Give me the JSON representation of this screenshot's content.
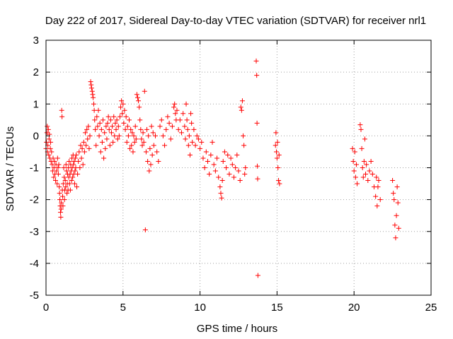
{
  "chart_data": {
    "type": "scatter",
    "title": "Day 222 of 2017, Sidereal Day-to-day VTEC variation (SDTVAR) for receiver nrl1",
    "xlabel": "GPS time / hours",
    "ylabel": "SDTVAR / TECUs",
    "xlim": [
      0,
      25
    ],
    "ylim": [
      -5,
      3
    ],
    "xticks": [
      0,
      5,
      10,
      15,
      20,
      25
    ],
    "yticks": [
      -5,
      -4,
      -3,
      -2,
      -1,
      0,
      1,
      2,
      3
    ],
    "grid": true,
    "marker": "+",
    "color": "#ff0000",
    "series": [
      {
        "name": "SDTVAR",
        "points": [
          [
            0.0,
            -0.4
          ],
          [
            0.03,
            -0.2
          ],
          [
            0.06,
            0.1
          ],
          [
            0.08,
            0.3
          ],
          [
            0.1,
            -0.5
          ],
          [
            0.12,
            -0.3
          ],
          [
            0.15,
            0.2
          ],
          [
            0.18,
            -0.6
          ],
          [
            0.2,
            -0.1
          ],
          [
            0.22,
            0.05
          ],
          [
            0.25,
            -0.7
          ],
          [
            0.28,
            -0.4
          ],
          [
            0.3,
            -0.2
          ],
          [
            0.33,
            -0.8
          ],
          [
            0.36,
            -0.5
          ],
          [
            0.4,
            -0.9
          ],
          [
            0.43,
            -1.1
          ],
          [
            0.46,
            -0.7
          ],
          [
            0.5,
            -1.3
          ],
          [
            0.52,
            -1.0
          ],
          [
            0.55,
            -0.8
          ],
          [
            0.58,
            -1.2
          ],
          [
            0.62,
            -1.4
          ],
          [
            0.65,
            -0.9
          ],
          [
            0.68,
            -1.1
          ],
          [
            0.72,
            -1.5
          ],
          [
            0.75,
            -0.7
          ],
          [
            0.78,
            -1.0
          ],
          [
            0.8,
            -1.2
          ],
          [
            0.83,
            -0.9
          ],
          [
            0.86,
            -1.6
          ],
          [
            0.88,
            -1.8
          ],
          [
            0.9,
            -2.0
          ],
          [
            0.92,
            -2.2
          ],
          [
            0.94,
            -2.4
          ],
          [
            0.96,
            -2.55
          ],
          [
            0.98,
            -2.3
          ],
          [
            1.0,
            -2.1
          ],
          [
            1.02,
            0.8
          ],
          [
            1.04,
            0.6
          ],
          [
            1.06,
            -1.7
          ],
          [
            1.08,
            -1.9
          ],
          [
            1.1,
            -2.2
          ],
          [
            1.12,
            -1.5
          ],
          [
            1.15,
            -1.0
          ],
          [
            1.18,
            -1.3
          ],
          [
            1.2,
            -2.0
          ],
          [
            1.22,
            -1.7
          ],
          [
            1.25,
            -1.4
          ],
          [
            1.28,
            -1.6
          ],
          [
            1.3,
            -0.9
          ],
          [
            1.33,
            -1.1
          ],
          [
            1.36,
            -1.8
          ],
          [
            1.38,
            -1.5
          ],
          [
            1.4,
            -1.2
          ],
          [
            1.43,
            -1.7
          ],
          [
            1.46,
            -1.0
          ],
          [
            1.48,
            -1.3
          ],
          [
            1.5,
            -0.8
          ],
          [
            1.53,
            -1.5
          ],
          [
            1.56,
            -1.2
          ],
          [
            1.58,
            -1.7
          ],
          [
            1.6,
            -0.9
          ],
          [
            1.63,
            -1.1
          ],
          [
            1.66,
            -1.4
          ],
          [
            1.68,
            -0.7
          ],
          [
            1.7,
            -1.0
          ],
          [
            1.73,
            -1.3
          ],
          [
            1.76,
            -0.6
          ],
          [
            1.78,
            -0.9
          ],
          [
            1.8,
            -1.2
          ],
          [
            1.83,
            -0.8
          ],
          [
            1.86,
            -1.5
          ],
          [
            1.88,
            -1.1
          ],
          [
            1.9,
            -0.7
          ],
          [
            1.93,
            -1.0
          ],
          [
            1.96,
            -0.6
          ],
          [
            2.0,
            -1.6
          ],
          [
            2.05,
            -1.2
          ],
          [
            2.1,
            -0.8
          ],
          [
            2.15,
            -0.5
          ],
          [
            2.2,
            -1.0
          ],
          [
            2.25,
            -0.3
          ],
          [
            2.3,
            -0.7
          ],
          [
            2.35,
            -0.4
          ],
          [
            2.4,
            -0.9
          ],
          [
            2.45,
            -0.2
          ],
          [
            2.5,
            -0.5
          ],
          [
            2.55,
            0.1
          ],
          [
            2.6,
            -0.3
          ],
          [
            2.65,
            0.2
          ],
          [
            2.7,
            -0.1
          ],
          [
            2.75,
            0.3
          ],
          [
            2.8,
            -0.4
          ],
          [
            2.85,
            0.0
          ],
          [
            2.9,
            1.7
          ],
          [
            2.93,
            1.6
          ],
          [
            2.96,
            1.5
          ],
          [
            3.0,
            1.4
          ],
          [
            3.03,
            1.3
          ],
          [
            3.06,
            1.2
          ],
          [
            3.1,
            1.0
          ],
          [
            3.13,
            0.8
          ],
          [
            3.16,
            0.5
          ],
          [
            3.2,
            0.2
          ],
          [
            3.25,
            -0.3
          ],
          [
            3.3,
            0.6
          ],
          [
            3.35,
            0.3
          ],
          [
            3.4,
            0.8
          ],
          [
            3.45,
            0.0
          ],
          [
            3.5,
            0.4
          ],
          [
            3.55,
            -0.5
          ],
          [
            3.6,
            0.2
          ],
          [
            3.65,
            -0.2
          ],
          [
            3.7,
            0.5
          ],
          [
            3.75,
            -0.7
          ],
          [
            3.8,
            0.1
          ],
          [
            3.85,
            -0.4
          ],
          [
            3.9,
            0.3
          ],
          [
            3.95,
            -0.1
          ],
          [
            4.0,
            0.4
          ],
          [
            4.05,
            0.6
          ],
          [
            4.1,
            0.2
          ],
          [
            4.15,
            -0.3
          ],
          [
            4.2,
            0.5
          ],
          [
            4.25,
            0.1
          ],
          [
            4.3,
            0.3
          ],
          [
            4.35,
            -0.2
          ],
          [
            4.4,
            0.6
          ],
          [
            4.45,
            0.0
          ],
          [
            4.5,
            0.4
          ],
          [
            4.55,
            0.2
          ],
          [
            4.6,
            0.5
          ],
          [
            4.65,
            -0.1
          ],
          [
            4.7,
            0.3
          ],
          [
            4.75,
            0.0
          ],
          [
            4.8,
            0.6
          ],
          [
            4.85,
            0.9
          ],
          [
            4.9,
            1.1
          ],
          [
            4.95,
            0.7
          ],
          [
            5.0,
            1.0
          ],
          [
            5.05,
            0.4
          ],
          [
            5.1,
            0.8
          ],
          [
            5.15,
            0.2
          ],
          [
            5.2,
            0.6
          ],
          [
            5.25,
            -0.2
          ],
          [
            5.3,
            0.3
          ],
          [
            5.35,
            0.0
          ],
          [
            5.4,
            0.5
          ],
          [
            5.45,
            -0.4
          ],
          [
            5.5,
            0.2
          ],
          [
            5.55,
            -0.3
          ],
          [
            5.6,
            0.1
          ],
          [
            5.65,
            -0.5
          ],
          [
            5.7,
            0.0
          ],
          [
            5.75,
            -0.2
          ],
          [
            5.8,
            0.3
          ],
          [
            5.85,
            -0.1
          ],
          [
            5.9,
            1.3
          ],
          [
            5.95,
            1.2
          ],
          [
            6.0,
            1.1
          ],
          [
            6.05,
            0.9
          ],
          [
            6.1,
            0.5
          ],
          [
            6.15,
            0.2
          ],
          [
            6.2,
            -0.1
          ],
          [
            6.25,
            -0.3
          ],
          [
            6.3,
            0.1
          ],
          [
            6.35,
            -0.2
          ],
          [
            6.4,
            1.4
          ],
          [
            6.45,
            -2.95
          ],
          [
            6.5,
            -0.5
          ],
          [
            6.55,
            0.2
          ],
          [
            6.6,
            -0.8
          ],
          [
            6.65,
            0.0
          ],
          [
            6.7,
            -1.1
          ],
          [
            6.75,
            -0.4
          ],
          [
            6.8,
            -0.9
          ],
          [
            6.85,
            0.3
          ],
          [
            6.9,
            -0.6
          ],
          [
            6.95,
            0.1
          ],
          [
            7.0,
            -0.3
          ],
          [
            7.1,
            0.0
          ],
          [
            7.2,
            -0.5
          ],
          [
            7.3,
            -0.8
          ],
          [
            7.4,
            0.3
          ],
          [
            7.5,
            0.5
          ],
          [
            7.6,
            0.0
          ],
          [
            7.7,
            -0.3
          ],
          [
            7.8,
            0.2
          ],
          [
            7.9,
            0.6
          ],
          [
            8.0,
            0.4
          ],
          [
            8.1,
            -0.1
          ],
          [
            8.2,
            0.3
          ],
          [
            8.3,
            0.9
          ],
          [
            8.35,
            1.0
          ],
          [
            8.4,
            0.7
          ],
          [
            8.45,
            0.5
          ],
          [
            8.5,
            0.8
          ],
          [
            8.6,
            0.2
          ],
          [
            8.7,
            0.5
          ],
          [
            8.8,
            0.1
          ],
          [
            8.9,
            0.7
          ],
          [
            9.0,
            0.3
          ],
          [
            9.05,
            -0.1
          ],
          [
            9.1,
            1.0
          ],
          [
            9.15,
            0.5
          ],
          [
            9.2,
            0.2
          ],
          [
            9.25,
            -0.3
          ],
          [
            9.3,
            0.0
          ],
          [
            9.35,
            -0.6
          ],
          [
            9.4,
            0.7
          ],
          [
            9.45,
            0.4
          ],
          [
            9.5,
            -0.2
          ],
          [
            9.6,
            0.2
          ],
          [
            9.7,
            -0.3
          ],
          [
            9.8,
            0.0
          ],
          [
            9.9,
            -0.1
          ],
          [
            10.0,
            -0.4
          ],
          [
            10.1,
            -0.2
          ],
          [
            10.2,
            -0.7
          ],
          [
            10.3,
            -1.0
          ],
          [
            10.4,
            -0.5
          ],
          [
            10.5,
            -0.8
          ],
          [
            10.6,
            -1.2
          ],
          [
            10.7,
            -0.6
          ],
          [
            10.8,
            -0.2
          ],
          [
            10.9,
            -0.9
          ],
          [
            11.0,
            -1.1
          ],
          [
            11.1,
            -0.7
          ],
          [
            11.2,
            -1.3
          ],
          [
            11.3,
            -1.6
          ],
          [
            11.35,
            -1.8
          ],
          [
            11.4,
            -1.95
          ],
          [
            11.45,
            -1.4
          ],
          [
            11.5,
            -0.8
          ],
          [
            11.6,
            -0.5
          ],
          [
            11.7,
            -1.0
          ],
          [
            11.8,
            -0.6
          ],
          [
            11.9,
            -1.2
          ],
          [
            12.0,
            -0.7
          ],
          [
            12.1,
            -0.9
          ],
          [
            12.2,
            -1.3
          ],
          [
            12.3,
            -1.0
          ],
          [
            12.4,
            -0.6
          ],
          [
            12.5,
            -1.1
          ],
          [
            12.6,
            -1.4
          ],
          [
            12.65,
            0.9
          ],
          [
            12.7,
            0.8
          ],
          [
            12.75,
            1.1
          ],
          [
            12.8,
            0.0
          ],
          [
            12.85,
            -0.3
          ],
          [
            12.9,
            -1.2
          ],
          [
            12.95,
            -1.0
          ],
          [
            13.65,
            2.35
          ],
          [
            13.68,
            1.9
          ],
          [
            13.7,
            0.4
          ],
          [
            13.72,
            -0.95
          ],
          [
            13.74,
            -1.35
          ],
          [
            13.76,
            -4.38
          ],
          [
            14.9,
            -0.3
          ],
          [
            14.93,
            0.1
          ],
          [
            14.96,
            -0.5
          ],
          [
            15.0,
            -0.7
          ],
          [
            15.03,
            -0.2
          ],
          [
            15.06,
            -1.0
          ],
          [
            15.1,
            -1.4
          ],
          [
            15.13,
            -0.6
          ],
          [
            15.16,
            -1.5
          ],
          [
            19.9,
            -0.4
          ],
          [
            19.95,
            -0.8
          ],
          [
            20.0,
            -1.1
          ],
          [
            20.05,
            -0.5
          ],
          [
            20.1,
            -1.3
          ],
          [
            20.15,
            -0.9
          ],
          [
            20.2,
            -1.5
          ],
          [
            20.4,
            0.35
          ],
          [
            20.45,
            0.2
          ],
          [
            20.5,
            -0.4
          ],
          [
            20.55,
            -1.0
          ],
          [
            20.6,
            -1.3
          ],
          [
            20.65,
            -0.8
          ],
          [
            20.7,
            -0.1
          ],
          [
            20.75,
            -1.2
          ],
          [
            20.8,
            -0.9
          ],
          [
            20.9,
            -1.4
          ],
          [
            21.0,
            -1.1
          ],
          [
            21.1,
            -0.8
          ],
          [
            21.2,
            -1.2
          ],
          [
            21.3,
            -1.6
          ],
          [
            21.4,
            -1.9
          ],
          [
            21.45,
            -1.3
          ],
          [
            21.5,
            -2.2
          ],
          [
            21.55,
            -1.6
          ],
          [
            21.6,
            -1.4
          ],
          [
            21.7,
            -2.0
          ],
          [
            22.5,
            -1.4
          ],
          [
            22.55,
            -1.8
          ],
          [
            22.6,
            -2.0
          ],
          [
            22.65,
            -2.8
          ],
          [
            22.7,
            -3.2
          ],
          [
            22.75,
            -2.5
          ],
          [
            22.8,
            -1.6
          ],
          [
            22.85,
            -2.1
          ],
          [
            22.9,
            -2.9
          ]
        ]
      }
    ]
  }
}
